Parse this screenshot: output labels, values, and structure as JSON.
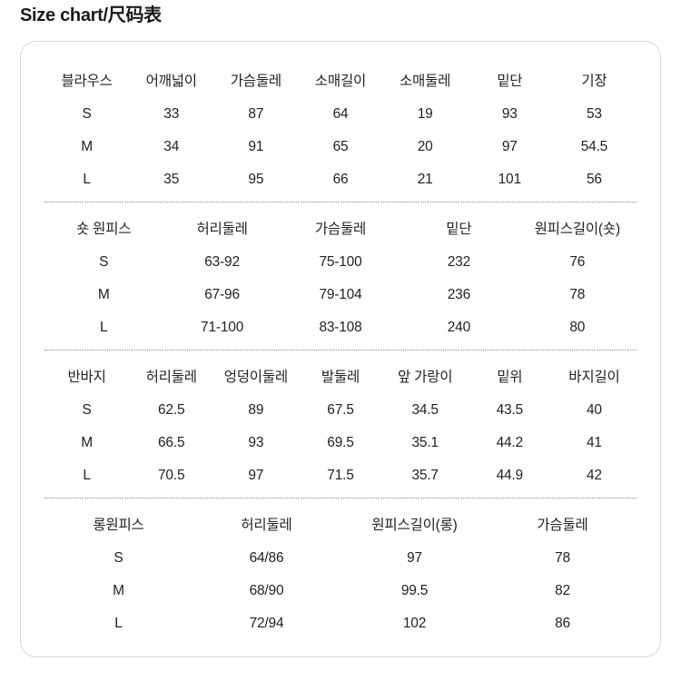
{
  "title": "Size chart/尺码表",
  "tables": [
    {
      "cols": 7,
      "headers": [
        "블라우스",
        "어깨넓이",
        "가슴둘레",
        "소매길이",
        "소매둘레",
        "밑단",
        "기장"
      ],
      "rows": [
        [
          "S",
          "33",
          "87",
          "64",
          "19",
          "93",
          "53"
        ],
        [
          "M",
          "34",
          "91",
          "65",
          "20",
          "97",
          "54.5"
        ],
        [
          "L",
          "35",
          "95",
          "66",
          "21",
          "101",
          "56"
        ]
      ]
    },
    {
      "cols": 5,
      "headers": [
        "숏 원피스",
        "허리둘레",
        "가슴둘레",
        "밑단",
        "원피스길이(숏)"
      ],
      "rows": [
        [
          "S",
          "63-92",
          "75-100",
          "232",
          "76"
        ],
        [
          "M",
          "67-96",
          "79-104",
          "236",
          "78"
        ],
        [
          "L",
          "71-100",
          "83-108",
          "240",
          "80"
        ]
      ]
    },
    {
      "cols": 7,
      "headers": [
        "반바지",
        "허리둘레",
        "엉덩이둘레",
        "발둘레",
        "앞 가랑이",
        "밑위",
        "바지길이"
      ],
      "rows": [
        [
          "S",
          "62.5",
          "89",
          "67.5",
          "34.5",
          "43.5",
          "40"
        ],
        [
          "M",
          "66.5",
          "93",
          "69.5",
          "35.1",
          "44.2",
          "41"
        ],
        [
          "L",
          "70.5",
          "97",
          "71.5",
          "35.7",
          "44.9",
          "42"
        ]
      ]
    },
    {
      "cols": 4,
      "headers": [
        "롱원피스",
        "허리둘레",
        "원피스길이(롱)",
        "가슴둘레"
      ],
      "rows": [
        [
          "S",
          "64/86",
          "97",
          "78"
        ],
        [
          "M",
          "68/90",
          "99.5",
          "82"
        ],
        [
          "L",
          "72/94",
          "102",
          "86"
        ]
      ]
    }
  ],
  "text_color": "#222222",
  "border_color": "#d9d9d9",
  "divider_color": "#888888",
  "background": "#ffffff"
}
